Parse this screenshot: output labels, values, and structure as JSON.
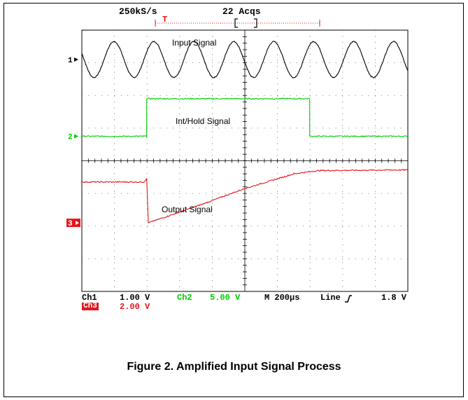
{
  "header": {
    "sample_rate": "250kS/s",
    "acquisitions": "22 Acqs",
    "trigger_marker": "T"
  },
  "readout": {
    "ch1_label": "Ch1",
    "ch1_scale": "1.00 V",
    "ch2_label": "Ch2",
    "ch2_scale": "5.00 V",
    "timebase": "M 200μs",
    "trigger_source": "Line",
    "trigger_level": "1.8 V",
    "ch3_label": "Ch3",
    "ch3_scale": "2.00 V"
  },
  "caption": "Figure 2. Amplified Input Signal Process",
  "chart_data": {
    "type": "line",
    "grid": true,
    "xlim": [
      0,
      2000
    ],
    "x_unit": "μs",
    "series": [
      {
        "name": "Input Signal",
        "channel_marker": "1",
        "color": "#000000",
        "kind": "sine",
        "period": 245,
        "amplitude_div": 0.55,
        "offset_div": 3.1,
        "phase_deg": 160
      },
      {
        "name": "Int/Hold Signal",
        "channel_marker": "2",
        "color": "#00cc00",
        "kind": "pulse",
        "points": [
          [
            0,
            0.75
          ],
          [
            398,
            0.75
          ],
          [
            398,
            1.9
          ],
          [
            1398,
            1.9
          ],
          [
            1398,
            0.75
          ],
          [
            2000,
            0.75
          ]
        ]
      },
      {
        "name": "Output Signal",
        "channel_marker": "3",
        "color": "#e5161c",
        "kind": "ramp",
        "points": [
          [
            0,
            -0.65
          ],
          [
            380,
            -0.65
          ],
          [
            398,
            -0.55
          ],
          [
            408,
            -1.9
          ],
          [
            700,
            -1.4
          ],
          [
            1000,
            -0.85
          ],
          [
            1300,
            -0.4
          ],
          [
            1450,
            -0.3
          ],
          [
            2000,
            -0.28
          ]
        ]
      }
    ]
  }
}
